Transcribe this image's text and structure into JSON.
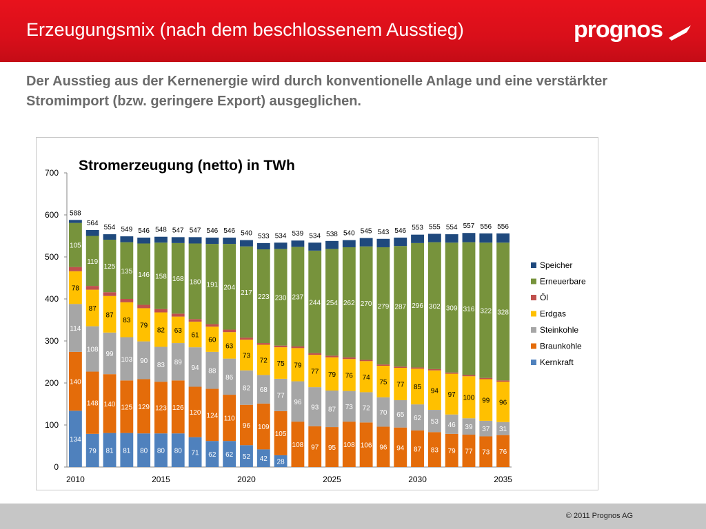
{
  "header": {
    "title": "Erzeugungsmix (nach dem beschlossenem Ausstieg)",
    "logo_text": "prognos",
    "subtitle": "Der Ausstieg aus der Kernenergie wird durch konventionelle Anlage und eine verstärkter Stromimport (bzw. geringere Export) ausgeglichen."
  },
  "footer": {
    "copyright": "© 2011 Prognos AG"
  },
  "colors": {
    "header_red": "#d90f1a",
    "Kernkraft": "#4f81bd",
    "Braunkohle": "#e46c0a",
    "Steinkohle": "#a6a6a6",
    "Erdgas": "#ffc000",
    "Oel": "#c0504d",
    "Erneuerbare": "#77933c",
    "Speicher": "#1f497d"
  },
  "chart_data": {
    "type": "bar",
    "stacked": true,
    "title": "Stromerzeugung (netto) in TWh",
    "xlabel": "",
    "ylabel": "",
    "ylim": [
      0,
      700
    ],
    "yticks": [
      0,
      100,
      200,
      300,
      400,
      500,
      600,
      700
    ],
    "x_tick_labels": [
      {
        "year": 2010,
        "label": "2010"
      },
      {
        "year": 2015,
        "label": "2015"
      },
      {
        "year": 2020,
        "label": "2020"
      },
      {
        "year": 2025,
        "label": "2025"
      },
      {
        "year": 2030,
        "label": "2030"
      },
      {
        "year": 2035,
        "label": "2035"
      }
    ],
    "categories": [
      2010,
      2011,
      2012,
      2013,
      2014,
      2015,
      2016,
      2017,
      2018,
      2019,
      2020,
      2021,
      2022,
      2023,
      2024,
      2025,
      2026,
      2027,
      2028,
      2029,
      2030,
      2031,
      2032,
      2033,
      2034,
      2035
    ],
    "series": [
      {
        "name": "Kernkraft",
        "values": [
          134,
          79,
          81,
          81,
          80,
          80,
          80,
          71,
          62,
          62,
          52,
          42,
          28,
          0,
          0,
          0,
          0,
          0,
          0,
          0,
          0,
          0,
          0,
          0,
          0,
          0
        ]
      },
      {
        "name": "Braunkohle",
        "values": [
          140,
          148,
          140,
          125,
          129,
          123,
          126,
          120,
          124,
          110,
          96,
          109,
          105,
          108,
          97,
          95,
          108,
          106,
          96,
          94,
          87,
          83,
          79,
          77,
          73,
          76
        ]
      },
      {
        "name": "Steinkohle",
        "values": [
          114,
          108,
          99,
          103,
          90,
          83,
          89,
          94,
          88,
          86,
          82,
          68,
          77,
          96,
          93,
          87,
          73,
          72,
          70,
          65,
          62,
          53,
          46,
          39,
          37,
          31
        ]
      },
      {
        "name": "Erdgas",
        "values": [
          78,
          87,
          87,
          83,
          79,
          82,
          63,
          61,
          60,
          63,
          73,
          72,
          75,
          79,
          77,
          79,
          76,
          74,
          75,
          77,
          85,
          94,
          97,
          100,
          99,
          96
        ]
      },
      {
        "name": "Öl",
        "values": [
          10,
          9,
          9,
          8,
          8,
          8,
          7,
          6,
          6,
          6,
          5,
          4,
          4,
          4,
          4,
          4,
          4,
          3,
          3,
          3,
          3,
          3,
          3,
          3,
          3,
          3
        ]
      },
      {
        "name": "Erneuerbare",
        "values": [
          105,
          119,
          125,
          135,
          146,
          158,
          168,
          180,
          191,
          204,
          217,
          223,
          230,
          237,
          244,
          254,
          262,
          270,
          279,
          287,
          296,
          302,
          309,
          316,
          322,
          328
        ]
      },
      {
        "name": "Speicher",
        "values": [
          7,
          14,
          13,
          14,
          14,
          14,
          14,
          15,
          15,
          15,
          15,
          15,
          15,
          15,
          19,
          19,
          17,
          20,
          20,
          20,
          20,
          20,
          20,
          22,
          22,
          22
        ]
      }
    ],
    "segment_labels_shown": {
      "Kernkraft": [
        134,
        79,
        81,
        81,
        80,
        80,
        80,
        71,
        62,
        62,
        52,
        42,
        28,
        null,
        null,
        null,
        null,
        null,
        null,
        null,
        null,
        null,
        null,
        null,
        null,
        null
      ],
      "Braunkohle": [
        140,
        148,
        140,
        125,
        129,
        123,
        126,
        120,
        124,
        110,
        96,
        109,
        105,
        108,
        97,
        95,
        108,
        106,
        96,
        94,
        87,
        83,
        79,
        77,
        73,
        76
      ],
      "Steinkohle": [
        114,
        108,
        99,
        103,
        90,
        83,
        89,
        94,
        88,
        86,
        82,
        68,
        77,
        96,
        93,
        87,
        73,
        72,
        70,
        65,
        62,
        53,
        46,
        39,
        37,
        31
      ],
      "Erdgas": [
        78,
        87,
        87,
        83,
        79,
        82,
        63,
        61,
        60,
        63,
        73,
        72,
        75,
        79,
        77,
        79,
        76,
        74,
        75,
        77,
        85,
        94,
        97,
        100,
        99,
        96
      ],
      "Erneuerbare": [
        105,
        119,
        125,
        135,
        146,
        158,
        168,
        180,
        191,
        204,
        217,
        223,
        230,
        237,
        244,
        254,
        262,
        270,
        279,
        287,
        296,
        302,
        309,
        316,
        322,
        328
      ]
    },
    "totals": [
      588,
      564,
      554,
      549,
      546,
      548,
      547,
      547,
      546,
      546,
      540,
      533,
      534,
      539,
      534,
      538,
      540,
      545,
      543,
      546,
      553,
      555,
      554,
      557,
      556,
      556
    ],
    "legend": {
      "placement": "right",
      "entries": [
        "Speicher",
        "Erneuerbare",
        "Öl",
        "Erdgas",
        "Steinkohle",
        "Braunkohle",
        "Kernkraft"
      ]
    },
    "grid": false
  }
}
